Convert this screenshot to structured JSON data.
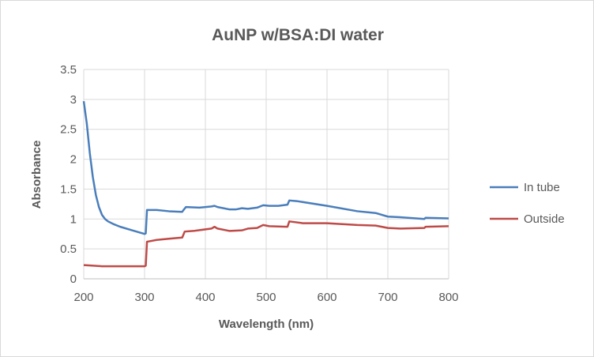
{
  "chart_data": {
    "type": "line",
    "title": "AuNP w/BSA:DI water",
    "xlabel": "Wavelength (nm)",
    "ylabel": "Absorbance",
    "xlim": [
      200,
      800
    ],
    "ylim": [
      0,
      3.5
    ],
    "xticks": [
      200,
      300,
      400,
      500,
      600,
      700,
      800
    ],
    "yticks": [
      "0",
      "0.5",
      "1",
      "1.5",
      "2",
      "2.5",
      "3",
      "3.5"
    ],
    "grid": true,
    "legend": "right",
    "series": [
      {
        "name": "In tube",
        "color": "#4a7ebb",
        "points": [
          [
            200,
            2.97
          ],
          [
            205,
            2.6
          ],
          [
            210,
            2.1
          ],
          [
            215,
            1.7
          ],
          [
            220,
            1.4
          ],
          [
            225,
            1.2
          ],
          [
            230,
            1.07
          ],
          [
            235,
            1.0
          ],
          [
            240,
            0.96
          ],
          [
            250,
            0.91
          ],
          [
            260,
            0.87
          ],
          [
            280,
            0.81
          ],
          [
            300,
            0.75
          ],
          [
            302,
            0.76
          ],
          [
            304,
            1.15
          ],
          [
            320,
            1.15
          ],
          [
            340,
            1.13
          ],
          [
            362,
            1.12
          ],
          [
            364,
            1.15
          ],
          [
            368,
            1.2
          ],
          [
            390,
            1.19
          ],
          [
            410,
            1.21
          ],
          [
            415,
            1.22
          ],
          [
            420,
            1.2
          ],
          [
            440,
            1.16
          ],
          [
            450,
            1.16
          ],
          [
            460,
            1.18
          ],
          [
            470,
            1.17
          ],
          [
            485,
            1.19
          ],
          [
            495,
            1.23
          ],
          [
            505,
            1.22
          ],
          [
            520,
            1.22
          ],
          [
            535,
            1.24
          ],
          [
            538,
            1.31
          ],
          [
            550,
            1.3
          ],
          [
            600,
            1.22
          ],
          [
            650,
            1.13
          ],
          [
            680,
            1.1
          ],
          [
            700,
            1.04
          ],
          [
            720,
            1.03
          ],
          [
            760,
            1.0
          ],
          [
            762,
            1.02
          ],
          [
            800,
            1.01
          ]
        ]
      },
      {
        "name": "Outside",
        "color": "#be4b48",
        "points": [
          [
            200,
            0.23
          ],
          [
            230,
            0.21
          ],
          [
            300,
            0.21
          ],
          [
            302,
            0.22
          ],
          [
            304,
            0.62
          ],
          [
            320,
            0.65
          ],
          [
            340,
            0.67
          ],
          [
            362,
            0.69
          ],
          [
            366,
            0.79
          ],
          [
            380,
            0.8
          ],
          [
            410,
            0.84
          ],
          [
            415,
            0.87
          ],
          [
            420,
            0.84
          ],
          [
            440,
            0.8
          ],
          [
            460,
            0.81
          ],
          [
            470,
            0.84
          ],
          [
            485,
            0.85
          ],
          [
            495,
            0.9
          ],
          [
            505,
            0.88
          ],
          [
            535,
            0.87
          ],
          [
            538,
            0.96
          ],
          [
            560,
            0.93
          ],
          [
            600,
            0.93
          ],
          [
            650,
            0.9
          ],
          [
            680,
            0.89
          ],
          [
            700,
            0.85
          ],
          [
            720,
            0.84
          ],
          [
            760,
            0.85
          ],
          [
            762,
            0.87
          ],
          [
            800,
            0.88
          ]
        ]
      }
    ]
  }
}
